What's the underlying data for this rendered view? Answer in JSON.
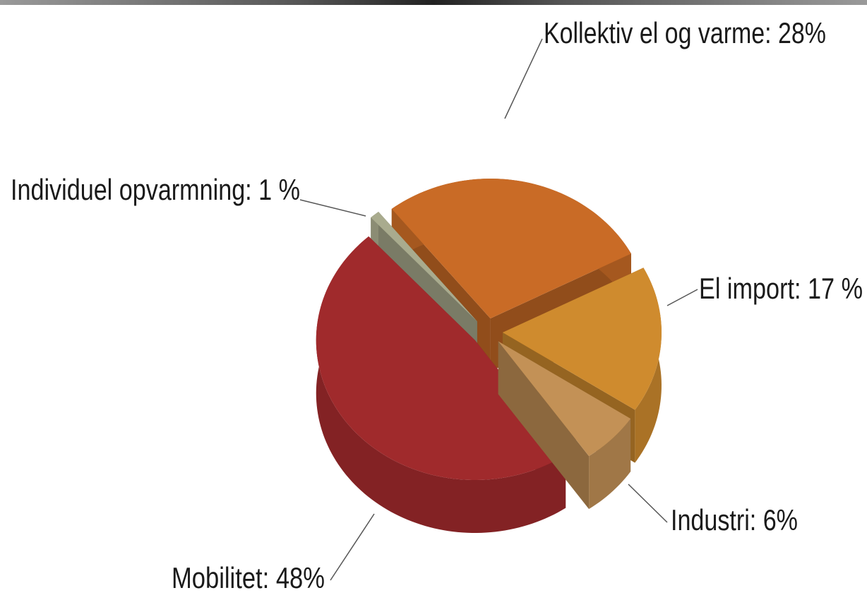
{
  "chart_data": {
    "type": "pie",
    "values": [
      1,
      28,
      17,
      6,
      48
    ],
    "value_labels": [
      "Individuel opvarmning: 1 %",
      "Kollektiv el og varme: 28%",
      "El import: 17 %",
      "Industri: 6%",
      "Mobilitet: 48%"
    ],
    "colors": [
      "#a9ab8e",
      "#c96b26",
      "#cf8b2e",
      "#c39156",
      "#a02a2c"
    ]
  }
}
